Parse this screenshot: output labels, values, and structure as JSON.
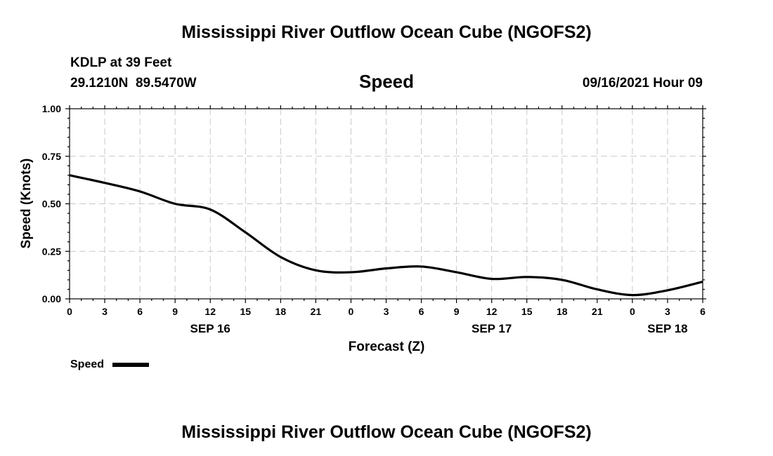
{
  "chart_data": {
    "type": "line",
    "title": "Mississippi River Outflow Ocean Cube (NGOFS2)",
    "footer_title": "Mississippi River Outflow Ocean Cube (NGOFS2)",
    "station": "KDLP at 39 Feet",
    "location": "29.1210N  89.5470W",
    "subtitle": "Speed",
    "timestamp": "09/16/2021 Hour 09",
    "xlabel": "Forecast (Z)",
    "ylabel": "Speed (Knots)",
    "ylim": [
      0,
      1
    ],
    "xlim": [
      0,
      54
    ],
    "x_ticks": [
      0,
      3,
      6,
      9,
      12,
      15,
      18,
      21,
      24,
      27,
      30,
      33,
      36,
      39,
      42,
      45,
      48,
      51,
      54
    ],
    "x_tick_labels": [
      "0",
      "3",
      "6",
      "9",
      "12",
      "15",
      "18",
      "21",
      "0",
      "3",
      "6",
      "9",
      "12",
      "15",
      "18",
      "21",
      "0",
      "3",
      "6"
    ],
    "y_ticks": [
      0,
      0.25,
      0.5,
      0.75,
      1.0
    ],
    "y_tick_labels": [
      "0.00",
      "0.25",
      "0.50",
      "0.75",
      "1.00"
    ],
    "date_labels": [
      {
        "x": 12,
        "label": "SEP 16"
      },
      {
        "x": 36,
        "label": "SEP 17"
      },
      {
        "x": 51,
        "label": "SEP 18"
      }
    ],
    "grid": true,
    "legend": {
      "position": "bottom-left",
      "entries": [
        "Speed"
      ]
    },
    "series": [
      {
        "name": "Speed",
        "color": "#000000",
        "x": [
          0,
          3,
          6,
          9,
          12,
          15,
          18,
          21,
          24,
          27,
          30,
          33,
          36,
          39,
          42,
          45,
          48,
          51,
          54
        ],
        "values": [
          0.65,
          0.61,
          0.565,
          0.5,
          0.47,
          0.35,
          0.22,
          0.15,
          0.14,
          0.16,
          0.17,
          0.14,
          0.105,
          0.115,
          0.1,
          0.05,
          0.02,
          0.045,
          0.09
        ]
      }
    ]
  }
}
